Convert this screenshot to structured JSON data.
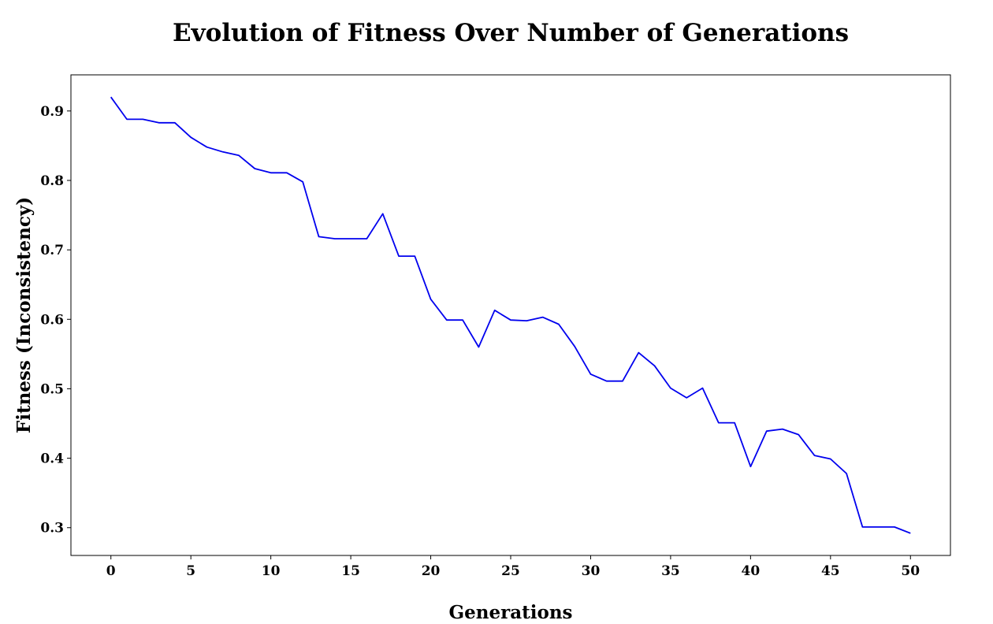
{
  "chart_data": {
    "type": "line",
    "title": "Evolution of Fitness Over Number of Generations",
    "xlabel": "Generations",
    "ylabel": "Fitness (Inconsistency)",
    "xlim": [
      -2.5,
      52.5
    ],
    "ylim": [
      0.26,
      0.952
    ],
    "xticks": [
      0,
      5,
      10,
      15,
      20,
      25,
      30,
      35,
      40,
      45,
      50
    ],
    "yticks": [
      0.3,
      0.4,
      0.5,
      0.6,
      0.7,
      0.8,
      0.9
    ],
    "grid": false,
    "line_color": "#0000ee",
    "x": [
      0,
      1,
      2,
      3,
      4,
      5,
      6,
      7,
      8,
      9,
      10,
      11,
      12,
      13,
      14,
      15,
      16,
      17,
      18,
      19,
      20,
      21,
      22,
      23,
      24,
      25,
      26,
      27,
      28,
      29,
      30,
      31,
      32,
      33,
      34,
      35,
      36,
      37,
      38,
      39,
      40,
      41,
      42,
      43,
      44,
      45,
      46,
      47,
      48,
      49,
      50
    ],
    "y": [
      0.92,
      0.888,
      0.888,
      0.883,
      0.883,
      0.862,
      0.848,
      0.841,
      0.836,
      0.817,
      0.811,
      0.811,
      0.798,
      0.719,
      0.716,
      0.716,
      0.716,
      0.752,
      0.691,
      0.691,
      0.629,
      0.599,
      0.599,
      0.56,
      0.613,
      0.599,
      0.598,
      0.603,
      0.593,
      0.561,
      0.521,
      0.511,
      0.511,
      0.552,
      0.533,
      0.501,
      0.487,
      0.501,
      0.451,
      0.451,
      0.388,
      0.439,
      0.442,
      0.434,
      0.404,
      0.399,
      0.378,
      0.301,
      0.301,
      0.301,
      0.292
    ]
  }
}
